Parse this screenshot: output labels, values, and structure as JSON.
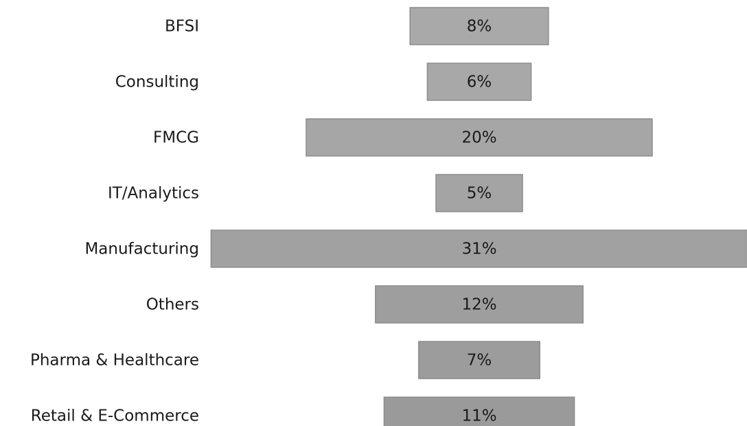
{
  "chart_data": {
    "type": "funnel",
    "categories": [
      "BFSI",
      "Consulting",
      "FMCG",
      "IT/Analytics",
      "Manufacturing",
      "Others",
      "Pharma & Healthcare",
      "Retail & E-Commerce"
    ],
    "values": [
      8,
      6,
      20,
      5,
      31,
      12,
      7,
      11
    ],
    "value_labels": [
      "8%",
      "6%",
      "20%",
      "5%",
      "31%",
      "12%",
      "7%",
      "11%"
    ],
    "colors": [
      "#a9a9a9",
      "#a8a8a8",
      "#a6a6a6",
      "#a4a4a4",
      "#a1a1a1",
      "#9e9e9e",
      "#9c9c9c",
      "#9a9a9a"
    ]
  }
}
